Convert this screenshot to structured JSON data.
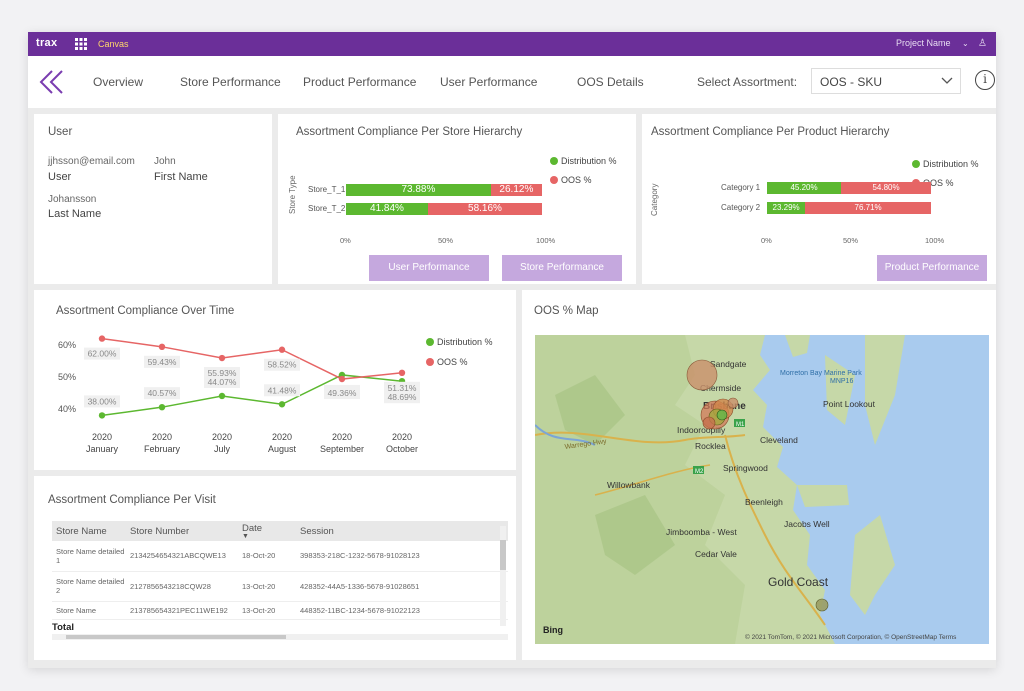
{
  "topbar": {
    "logo": "trax",
    "app_name": "Canvas",
    "project": "Project Name",
    "chevron": "⌄",
    "user_icon": "♙"
  },
  "nav": {
    "items": [
      "Overview",
      "Store Performance",
      "Product Performance",
      "User Performance",
      "OOS Details"
    ],
    "select_label": "Select Assortment:",
    "select_value": "OOS - SKU",
    "info": "i"
  },
  "user_card": {
    "title": "User",
    "email": "jjhsson@email.com",
    "email_label": "User",
    "first_name": "John",
    "first_name_label": "First Name",
    "last_name": "Johansson",
    "last_name_label": "Last Name"
  },
  "store_hierarchy": {
    "title": "Assortment Compliance Per Store Hierarchy",
    "axis_label": "Store Type",
    "legend": [
      "Distribution %",
      "OOS %"
    ],
    "ticks": [
      "0%",
      "50%",
      "100%"
    ],
    "buttons": [
      "User Performance",
      "Store Performance"
    ],
    "chart_data": {
      "type": "bar",
      "orientation": "horizontal",
      "stacked": true,
      "categories": [
        "Store_T_1",
        "Store_T_2"
      ],
      "series": [
        {
          "name": "Distribution %",
          "values": [
            73.88,
            41.84
          ],
          "labels": [
            "73.88%",
            "41.84%"
          ],
          "color": "#5cb830"
        },
        {
          "name": "OOS %",
          "values": [
            26.12,
            58.16
          ],
          "labels": [
            "26.12%",
            "58.16%"
          ],
          "color": "#e66565"
        }
      ],
      "xlim": [
        0,
        100
      ]
    }
  },
  "product_hierarchy": {
    "title": "Assortment Compliance Per Product Hierarchy",
    "axis_label": "Category",
    "legend": [
      "Distribution %",
      "OOS %"
    ],
    "ticks": [
      "0%",
      "50%",
      "100%"
    ],
    "button": "Product Performance",
    "chart_data": {
      "type": "bar",
      "orientation": "horizontal",
      "stacked": true,
      "categories": [
        "Category 1",
        "Category 2"
      ],
      "series": [
        {
          "name": "Distribution %",
          "values": [
            45.2,
            23.29
          ],
          "labels": [
            "45.20%",
            "23.29%"
          ],
          "color": "#5cb830"
        },
        {
          "name": "OOS %",
          "values": [
            54.8,
            76.71
          ],
          "labels": [
            "54.80%",
            "76.71%"
          ],
          "color": "#e66565"
        }
      ],
      "xlim": [
        0,
        100
      ]
    }
  },
  "over_time": {
    "title": "Assortment Compliance Over Time",
    "legend": [
      "Distribution %",
      "OOS %"
    ],
    "yticks": [
      "60%",
      "50%",
      "40%"
    ],
    "chart_data": {
      "type": "line",
      "categories": [
        [
          "2020",
          "January"
        ],
        [
          "2020",
          "February"
        ],
        [
          "2020",
          "July"
        ],
        [
          "2020",
          "August"
        ],
        [
          "2020",
          "September"
        ],
        [
          "2020",
          "October"
        ]
      ],
      "series": [
        {
          "name": "Distribution %",
          "values": [
            38.0,
            40.57,
            44.07,
            41.48,
            50.64,
            48.69
          ],
          "labels": [
            "38.00%",
            "40.57%",
            "44.07%",
            "41.48%",
            "50.64%",
            "48.69%"
          ],
          "color": "#5cb830"
        },
        {
          "name": "OOS %",
          "values": [
            62.0,
            59.43,
            55.93,
            58.52,
            49.36,
            51.31
          ],
          "labels": [
            "62.00%",
            "59.43%",
            "55.93%",
            "58.52%",
            "49.36%",
            "51.31%"
          ],
          "color": "#e66565"
        }
      ],
      "ylim": [
        35,
        65
      ]
    }
  },
  "visits": {
    "title": "Assortment Compliance Per Visit",
    "columns": [
      "Store Name",
      "Store Number",
      "Date",
      "Session"
    ],
    "rows": [
      {
        "store_name": "Store Name detailed 1",
        "store_number": "2134254654321ABCQWE13",
        "date": "18-Oct-20",
        "session": "398353-218C-1232-5678-91028123"
      },
      {
        "store_name": "Store Name detailed 2",
        "store_number": "2127856543218CQW28",
        "date": "13-Oct-20",
        "session": "428352-44A5-1336-5678-91028651"
      },
      {
        "store_name": "Store Name",
        "store_number": "213785654321PEC11WE192",
        "date": "13-Oct-20",
        "session": "448352-11BC-1234-5678-91022123"
      }
    ],
    "total_label": "Total"
  },
  "map": {
    "title": "OOS % Map",
    "places": [
      "Sandgate",
      "Chermside",
      "Morreton Bay Marine Park",
      "MNP16",
      "Point Lookout",
      "Brisbane",
      "Indooroopilly",
      "Rocklea",
      "Cleveland",
      "Springwood",
      "Willowbank",
      "Warrego Hwy",
      "Beenleigh",
      "Jimboomba - West",
      "Jacobs Well",
      "Cedar Vale",
      "Gold Coast",
      "M1",
      "M2"
    ],
    "brand": "Bing",
    "attribution": "© 2021 TomTom, © 2021 Microsoft Corporation, © OpenStreetMap  Terms"
  }
}
